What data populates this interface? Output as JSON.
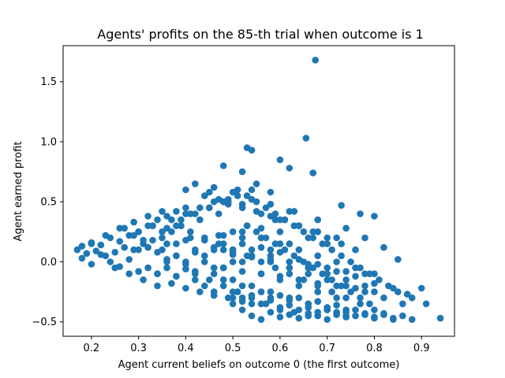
{
  "chart_data": {
    "type": "scatter",
    "title": "Agents' profits on the 85-th trial when outcome is 1",
    "xlabel": "Agent current beliefs on outcome 0 (the first outcome)",
    "ylabel": "Agent earned profit",
    "xlim": [
      0.14,
      0.97
    ],
    "ylim": [
      -0.62,
      1.8
    ],
    "xticks": [
      0.2,
      0.3,
      0.4,
      0.5,
      0.6,
      0.7,
      0.8,
      0.9
    ],
    "xtick_labels": [
      "0.2",
      "0.3",
      "0.4",
      "0.5",
      "0.6",
      "0.7",
      "0.8",
      "0.9"
    ],
    "yticks": [
      -0.5,
      0.0,
      0.5,
      1.0,
      1.5
    ],
    "ytick_labels": [
      "−0.5",
      "0.0",
      "0.5",
      "1.0",
      "1.5"
    ],
    "grid": false,
    "marker_color": "#1f77b4",
    "series": [
      {
        "x": [
          0.17,
          0.18,
          0.19,
          0.2,
          0.21,
          0.22,
          0.23,
          0.24,
          0.25,
          0.26,
          0.27,
          0.28,
          0.29,
          0.3,
          0.31,
          0.32,
          0.33,
          0.34,
          0.35,
          0.36,
          0.37,
          0.38,
          0.39,
          0.4,
          0.18,
          0.2,
          0.22,
          0.24,
          0.26,
          0.28,
          0.3,
          0.32,
          0.34,
          0.36,
          0.38,
          0.4,
          0.42,
          0.25,
          0.28,
          0.31,
          0.34,
          0.37,
          0.4,
          0.43,
          0.46,
          0.49,
          0.52,
          0.3,
          0.33,
          0.36,
          0.39,
          0.42,
          0.45,
          0.48,
          0.51,
          0.54,
          0.35,
          0.38,
          0.41,
          0.44,
          0.47,
          0.5,
          0.53,
          0.56,
          0.59,
          0.42,
          0.45,
          0.48,
          0.51,
          0.54,
          0.57,
          0.6,
          0.63,
          0.66,
          0.45,
          0.47,
          0.49,
          0.51,
          0.53,
          0.55,
          0.57,
          0.59,
          0.61,
          0.63,
          0.65,
          0.67,
          0.69,
          0.71,
          0.73,
          0.75,
          0.77,
          0.79,
          0.81,
          0.83,
          0.85,
          0.88,
          0.91,
          0.94,
          0.5,
          0.52,
          0.54,
          0.56,
          0.58,
          0.6,
          0.62,
          0.64,
          0.66,
          0.68,
          0.7,
          0.72,
          0.74,
          0.76,
          0.78,
          0.8,
          0.82,
          0.84,
          0.36,
          0.38,
          0.4,
          0.42,
          0.44,
          0.46,
          0.48,
          0.5,
          0.52,
          0.54,
          0.56,
          0.58,
          0.6,
          0.62,
          0.64,
          0.66,
          0.68,
          0.7,
          0.72,
          0.74,
          0.76,
          0.78,
          0.8,
          0.4,
          0.43,
          0.46,
          0.49,
          0.52,
          0.55,
          0.58,
          0.61,
          0.64,
          0.67,
          0.7,
          0.73,
          0.76,
          0.44,
          0.46,
          0.48,
          0.5,
          0.52,
          0.54,
          0.56,
          0.58,
          0.6,
          0.62,
          0.64,
          0.66,
          0.68,
          0.7,
          0.72,
          0.74,
          0.48,
          0.5,
          0.52,
          0.54,
          0.56,
          0.58,
          0.6,
          0.62,
          0.64,
          0.66,
          0.68,
          0.7,
          0.72,
          0.74,
          0.76,
          0.78,
          0.8,
          0.82,
          0.84,
          0.86,
          0.3,
          0.32,
          0.34,
          0.36,
          0.38,
          0.4,
          0.42,
          0.44,
          0.46,
          0.48,
          0.5,
          0.52,
          0.54,
          0.56,
          0.58,
          0.6,
          0.62,
          0.64,
          0.66,
          0.68,
          0.7,
          0.72,
          0.74,
          0.76,
          0.78,
          0.8,
          0.34,
          0.36,
          0.38,
          0.4,
          0.42,
          0.44,
          0.46,
          0.48,
          0.5,
          0.52,
          0.54,
          0.56,
          0.58,
          0.6,
          0.62,
          0.64,
          0.66,
          0.68,
          0.7,
          0.72,
          0.5,
          0.52,
          0.54,
          0.56,
          0.58,
          0.6,
          0.62,
          0.64,
          0.66,
          0.68,
          0.7,
          0.72,
          0.74,
          0.76,
          0.78,
          0.8,
          0.82,
          0.84,
          0.86,
          0.88,
          0.4,
          0.42,
          0.44,
          0.46,
          0.48,
          0.5,
          0.52,
          0.54,
          0.56,
          0.58,
          0.6,
          0.62,
          0.64,
          0.27,
          0.29,
          0.31,
          0.33,
          0.35,
          0.37,
          0.39,
          0.41,
          0.43,
          0.45,
          0.47,
          0.49,
          0.46,
          0.48,
          0.5,
          0.52,
          0.54,
          0.56,
          0.58,
          0.6,
          0.62,
          0.64,
          0.66,
          0.68,
          0.7,
          0.72,
          0.74,
          0.53,
          0.55,
          0.57,
          0.59,
          0.61,
          0.63,
          0.65,
          0.67,
          0.69,
          0.71,
          0.73,
          0.75,
          0.77,
          0.79,
          0.675,
          0.655,
          0.67,
          0.53,
          0.54,
          0.6,
          0.62,
          0.73,
          0.77,
          0.8,
          0.87,
          0.9,
          0.48,
          0.52,
          0.55,
          0.58,
          0.63,
          0.68,
          0.74,
          0.78,
          0.82,
          0.85,
          0.2,
          0.23,
          0.26,
          0.29,
          0.32,
          0.35,
          0.38,
          0.41,
          0.44,
          0.47,
          0.5,
          0.53,
          0.56,
          0.59,
          0.62,
          0.65,
          0.68,
          0.71,
          0.74,
          0.77,
          0.8
        ],
        "y": [
          0.1,
          0.13,
          0.07,
          0.16,
          0.09,
          0.14,
          0.05,
          0.2,
          0.08,
          0.17,
          0.12,
          0.22,
          0.1,
          0.25,
          0.15,
          0.3,
          0.18,
          0.35,
          0.2,
          0.38,
          0.25,
          0.42,
          0.3,
          0.45,
          0.03,
          -0.02,
          0.06,
          0.0,
          -0.04,
          0.02,
          -0.08,
          -0.05,
          -0.1,
          0.0,
          -0.12,
          -0.06,
          -0.15,
          -0.05,
          -0.1,
          -0.15,
          -0.2,
          -0.18,
          -0.22,
          -0.25,
          -0.28,
          -0.3,
          -0.33,
          0.25,
          0.3,
          0.28,
          0.35,
          0.4,
          0.45,
          0.5,
          0.55,
          0.6,
          0.1,
          0.15,
          0.2,
          0.18,
          0.22,
          0.25,
          0.3,
          0.28,
          0.35,
          -0.1,
          -0.15,
          -0.2,
          -0.25,
          -0.3,
          -0.35,
          -0.4,
          -0.42,
          -0.45,
          0.58,
          0.52,
          0.48,
          0.6,
          0.55,
          0.5,
          0.45,
          0.4,
          0.35,
          0.3,
          0.25,
          0.2,
          0.15,
          0.1,
          0.05,
          0.0,
          -0.05,
          -0.1,
          -0.15,
          -0.2,
          -0.25,
          -0.3,
          -0.35,
          -0.47,
          -0.35,
          -0.4,
          -0.45,
          -0.48,
          -0.42,
          -0.46,
          -0.44,
          -0.47,
          -0.43,
          -0.45,
          -0.48,
          -0.42,
          -0.46,
          -0.4,
          -0.44,
          -0.47,
          -0.43,
          -0.48,
          0.02,
          0.05,
          -0.02,
          0.08,
          0.0,
          0.1,
          -0.05,
          0.06,
          -0.08,
          0.04,
          -0.1,
          0.02,
          -0.12,
          0.0,
          -0.15,
          -0.02,
          -0.18,
          -0.05,
          -0.2,
          -0.08,
          -0.22,
          -0.1,
          -0.25,
          0.4,
          0.45,
          0.5,
          0.52,
          0.48,
          0.42,
          0.38,
          0.35,
          0.3,
          0.25,
          0.2,
          0.15,
          0.1,
          -0.2,
          -0.25,
          -0.15,
          -0.3,
          -0.2,
          -0.35,
          -0.25,
          -0.3,
          -0.28,
          -0.32,
          -0.3,
          -0.35,
          -0.33,
          -0.38,
          -0.36,
          -0.4,
          0.15,
          0.1,
          0.2,
          0.05,
          0.12,
          0.0,
          0.08,
          -0.05,
          0.02,
          -0.1,
          -0.02,
          -0.15,
          -0.08,
          -0.2,
          -0.12,
          -0.25,
          -0.18,
          -0.3,
          -0.22,
          -0.35,
          0.1,
          0.12,
          0.08,
          0.15,
          0.05,
          0.18,
          0.1,
          0.2,
          0.12,
          0.22,
          0.08,
          0.25,
          0.1,
          0.2,
          0.05,
          0.15,
          0.0,
          0.1,
          -0.05,
          0.05,
          -0.1,
          0.0,
          -0.15,
          -0.05,
          -0.2,
          -0.1,
          -0.1,
          -0.05,
          -0.12,
          0.0,
          -0.08,
          0.05,
          -0.05,
          0.1,
          0.0,
          0.15,
          0.05,
          0.2,
          0.1,
          0.25,
          0.15,
          0.3,
          0.2,
          0.25,
          0.15,
          0.2,
          -0.25,
          -0.3,
          -0.28,
          -0.35,
          -0.32,
          -0.38,
          -0.36,
          -0.4,
          -0.38,
          -0.42,
          -0.4,
          -0.44,
          -0.42,
          -0.45,
          -0.43,
          -0.46,
          -0.44,
          -0.47,
          -0.45,
          -0.48,
          0.6,
          0.65,
          0.55,
          0.62,
          0.5,
          0.58,
          0.45,
          0.52,
          0.4,
          0.48,
          0.35,
          0.42,
          0.3,
          0.28,
          0.22,
          0.18,
          0.3,
          0.25,
          0.35,
          0.3,
          0.4,
          0.35,
          0.45,
          0.4,
          0.5,
          -0.1,
          -0.05,
          -0.15,
          0.0,
          -0.2,
          -0.1,
          -0.25,
          -0.15,
          -0.3,
          -0.2,
          -0.35,
          -0.25,
          -0.4,
          -0.3,
          -0.45,
          0.3,
          0.25,
          0.2,
          0.15,
          0.1,
          0.05,
          0.0,
          -0.05,
          -0.1,
          -0.15,
          -0.2,
          -0.25,
          -0.3,
          -0.35,
          1.68,
          1.03,
          0.74,
          0.95,
          0.93,
          0.85,
          0.78,
          0.47,
          0.4,
          0.38,
          -0.27,
          -0.22,
          0.8,
          0.75,
          0.65,
          0.58,
          0.42,
          0.35,
          0.28,
          0.2,
          0.12,
          0.02,
          0.15,
          0.22,
          0.28,
          0.33,
          0.38,
          0.42,
          0.3,
          0.25,
          0.2,
          0.15,
          0.1,
          0.05,
          0.0,
          -0.05,
          -0.1,
          -0.15,
          -0.2,
          -0.25,
          -0.3,
          -0.35,
          -0.4
        ]
      }
    ]
  }
}
